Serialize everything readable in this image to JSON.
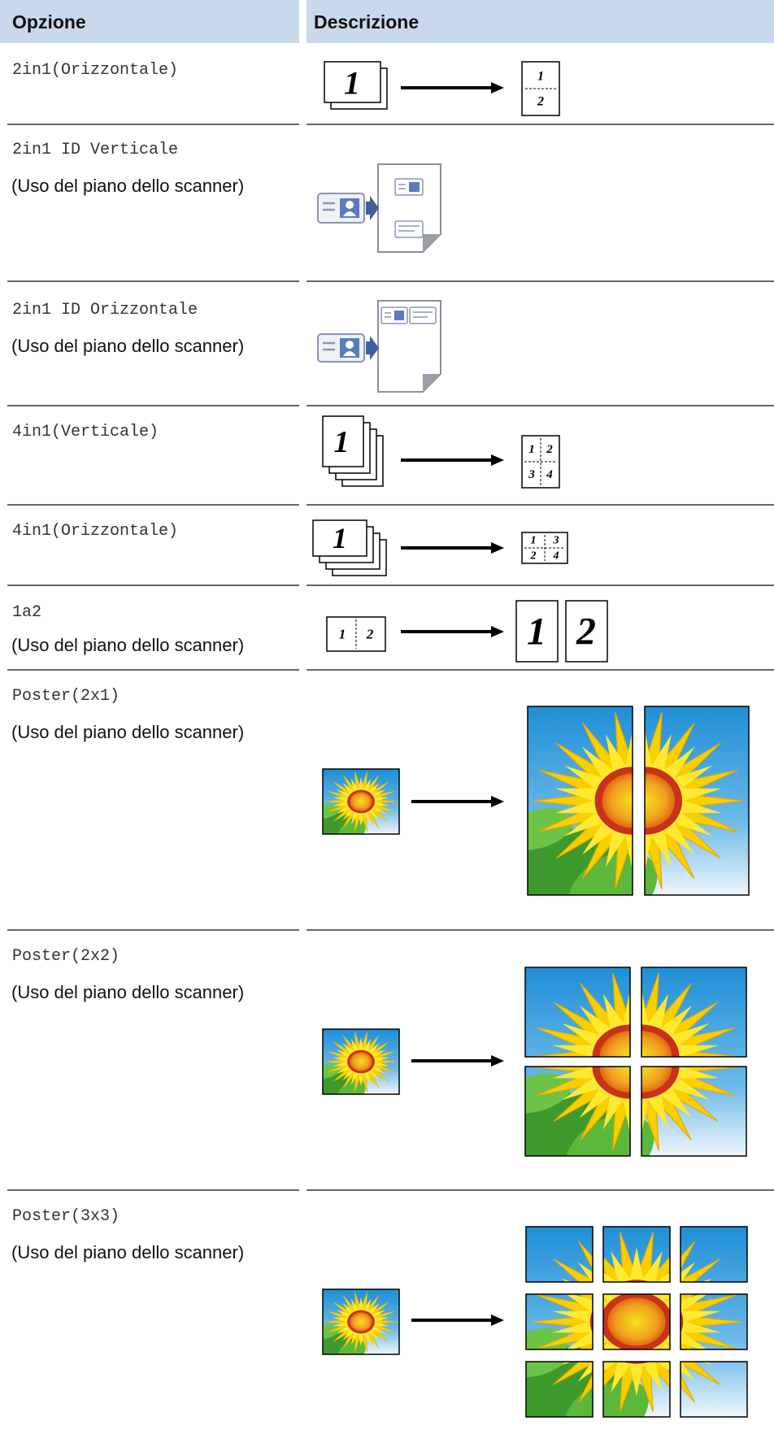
{
  "header": {
    "columns": [
      "Opzione",
      "Descrizione"
    ]
  },
  "rows": [
    {
      "option": "2in1(Orizzontale)",
      "figure": [
        "1",
        "1",
        "2"
      ]
    },
    {
      "option": "2in1 ID Verticale",
      "note": "(Uso del piano dello scanner)"
    },
    {
      "option": "2in1 ID Orizzontale",
      "note": "(Uso del piano dello scanner)"
    },
    {
      "option": "4in1(Verticale)",
      "figure": [
        "1",
        "1",
        "2",
        "3",
        "4"
      ]
    },
    {
      "option": "4in1(Orizzontale)",
      "figure": [
        "1",
        "1",
        "3",
        "2",
        "4"
      ]
    },
    {
      "option": "1a2",
      "note": "(Uso del piano dello scanner)",
      "figure": [
        "1",
        "2",
        "1",
        "2"
      ]
    },
    {
      "option": "Poster(2x1)",
      "note": "(Uso del piano dello scanner)"
    },
    {
      "option": "Poster(2x2)",
      "note": "(Uso del piano dello scanner)"
    },
    {
      "option": "Poster(3x3)",
      "note": "(Uso del piano dello scanner)"
    }
  ]
}
